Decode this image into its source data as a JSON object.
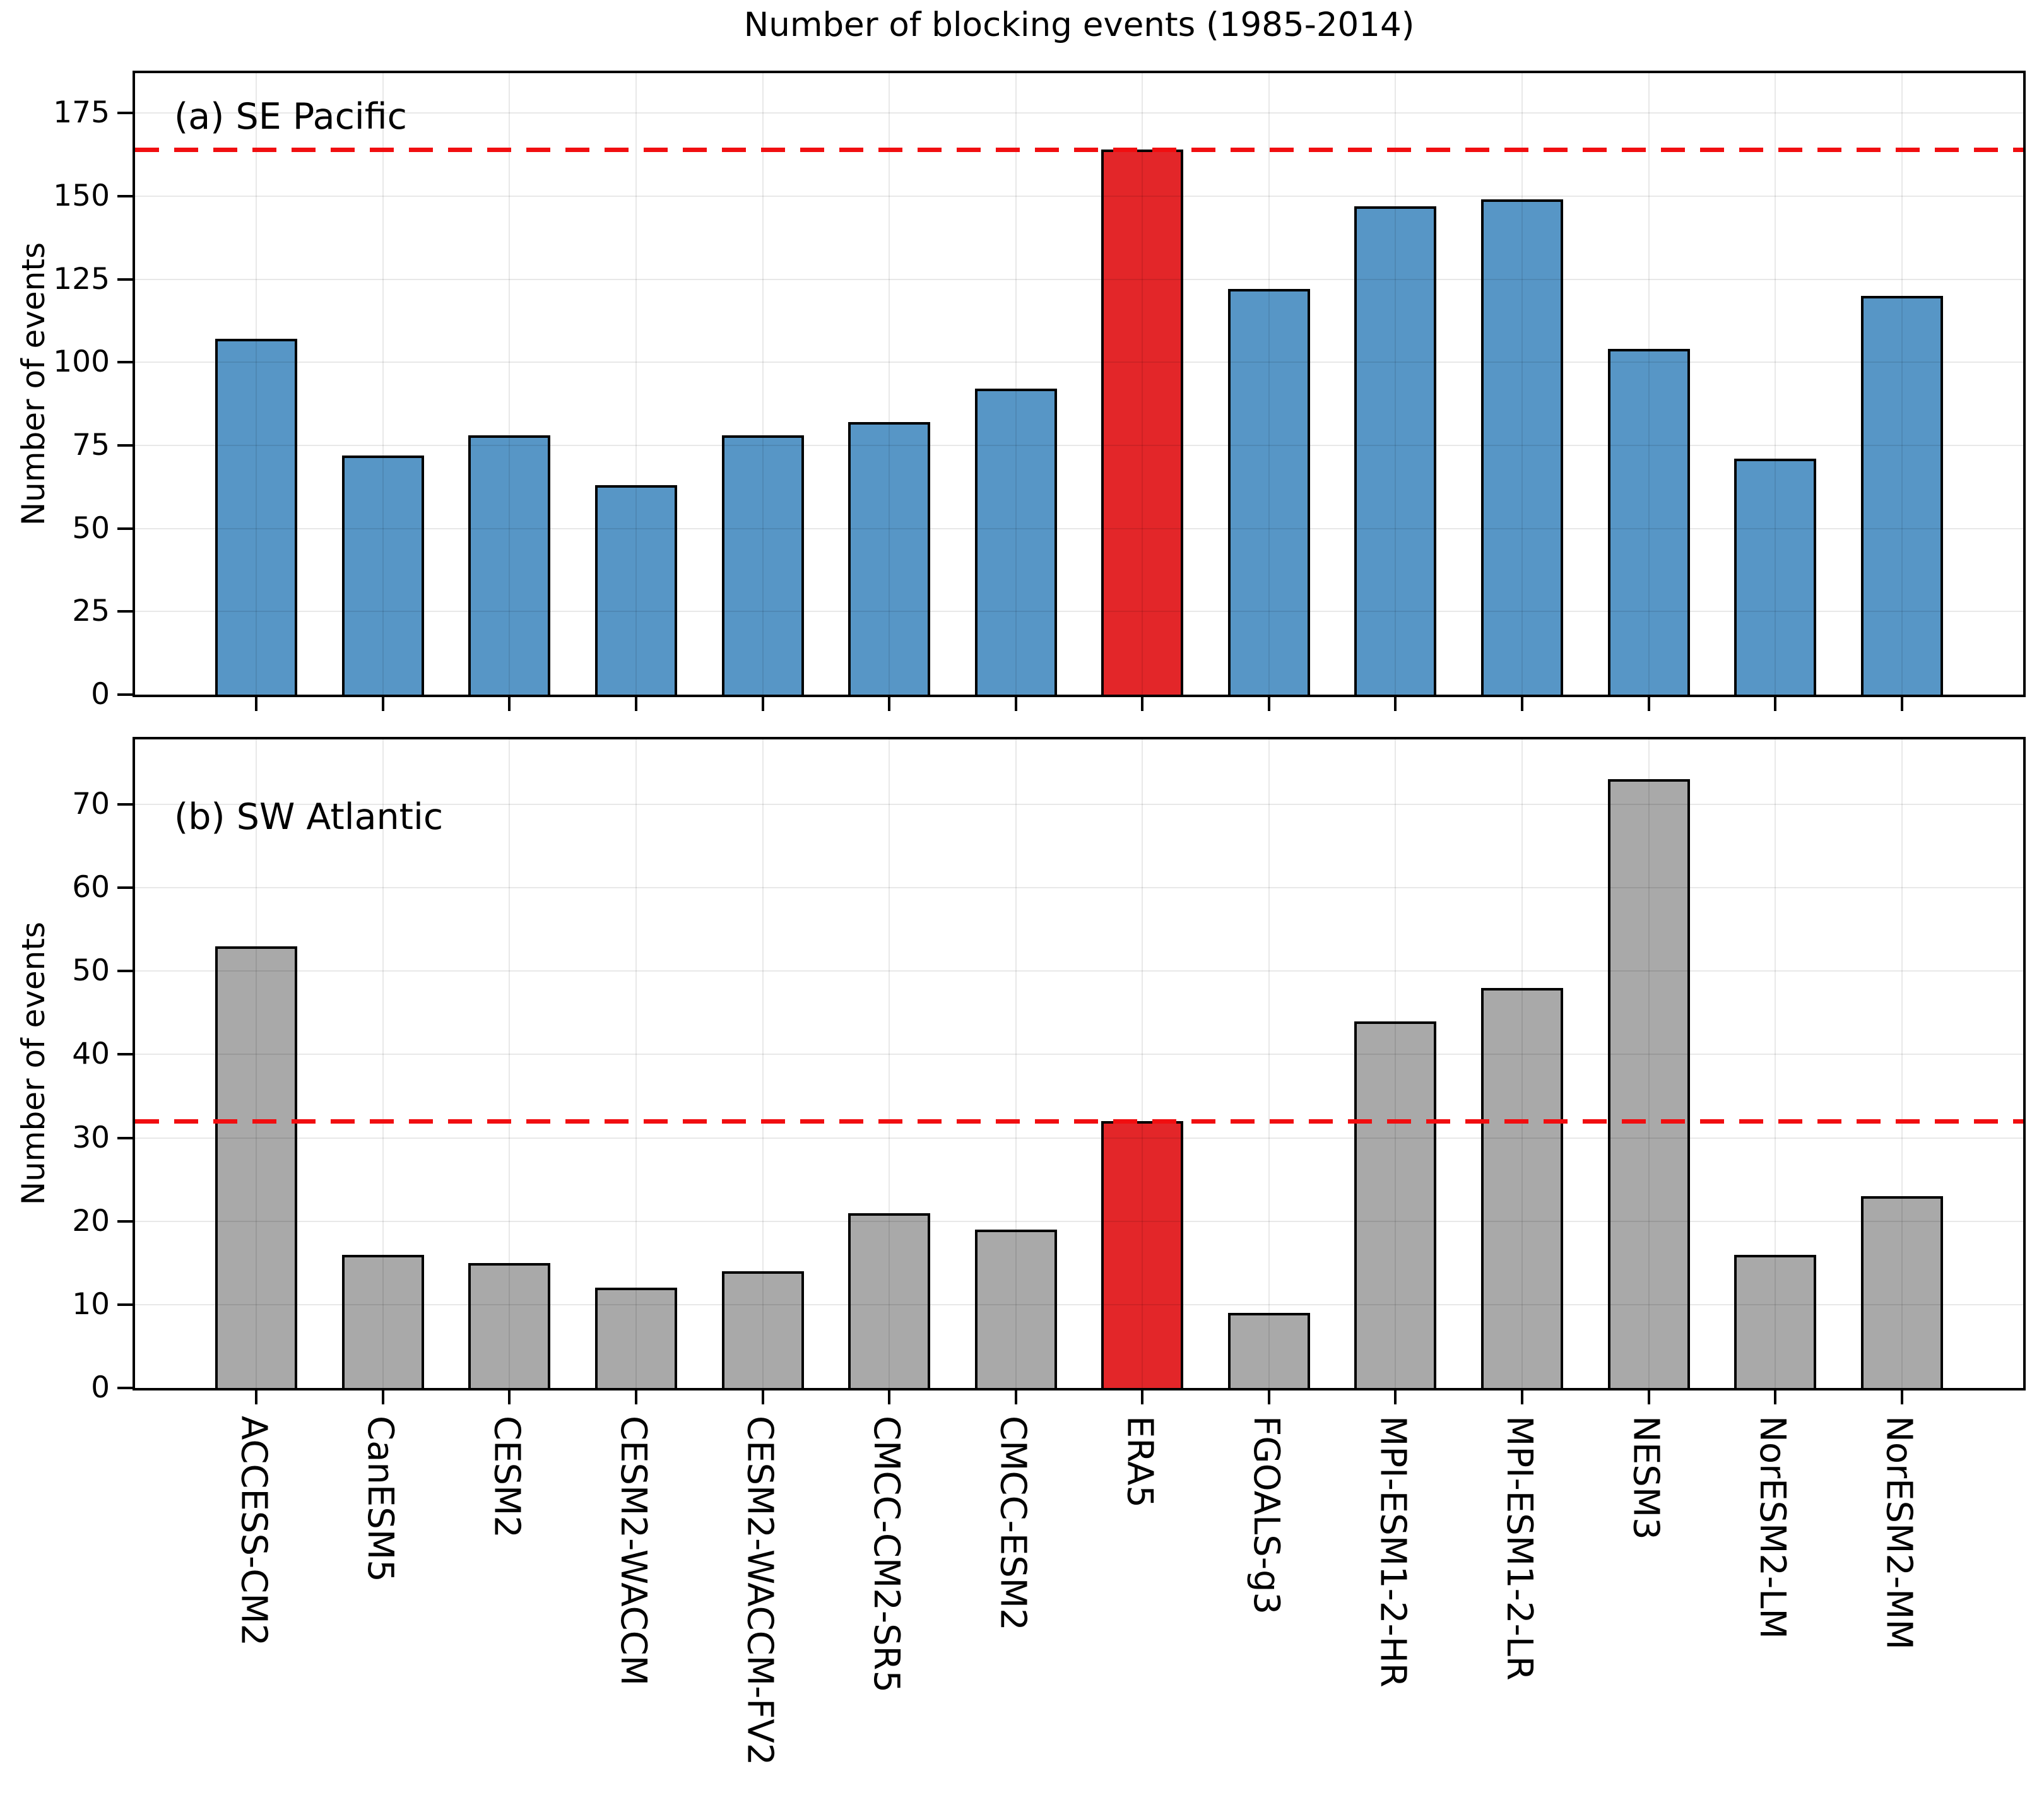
{
  "title": "Number of blocking events (1985-2014)",
  "chart_data": {
    "type": "bar",
    "title": "Number of blocking events (1985-2014)",
    "categories": [
      "ACCESS-CM2",
      "CanESM5",
      "CESM2",
      "CESM2-WACCM",
      "CESM2-WACCM-FV2",
      "CMCC-CM2-SR5",
      "CMCC-ESM2",
      "ERA5",
      "FGOALS-g3",
      "MPI-ESM1-2-HR",
      "MPI-ESM1-2-LR",
      "NESM3",
      "NorESM2-LM",
      "NorESM2-MM"
    ],
    "highlight_category": "ERA5",
    "highlight_index": 7,
    "highlight_color": "#e32629",
    "reference_line_color": "#f10e10",
    "grid": true,
    "legend": "none",
    "panels": [
      {
        "id": "a",
        "label": "(a) SE Pacific",
        "ylabel": "Number of events",
        "values": [
          107,
          72,
          78,
          63,
          78,
          82,
          92,
          164,
          122,
          147,
          149,
          104,
          71,
          120
        ],
        "yticks": [
          0,
          25,
          50,
          75,
          100,
          125,
          150,
          175
        ],
        "ylim": [
          0,
          187
        ],
        "bar_color": "#5796c6",
        "reference_line": 164,
        "show_x_labels": false
      },
      {
        "id": "b",
        "label": "(b) SW Atlantic",
        "ylabel": "Number of events",
        "values": [
          53,
          16,
          15,
          12,
          14,
          21,
          19,
          32,
          9,
          44,
          48,
          73,
          16,
          23
        ],
        "yticks": [
          0,
          10,
          20,
          30,
          40,
          50,
          60,
          70
        ],
        "ylim": [
          0,
          77.8
        ],
        "bar_color": "#a9a9a9",
        "reference_line": 32,
        "show_x_labels": true
      }
    ]
  }
}
